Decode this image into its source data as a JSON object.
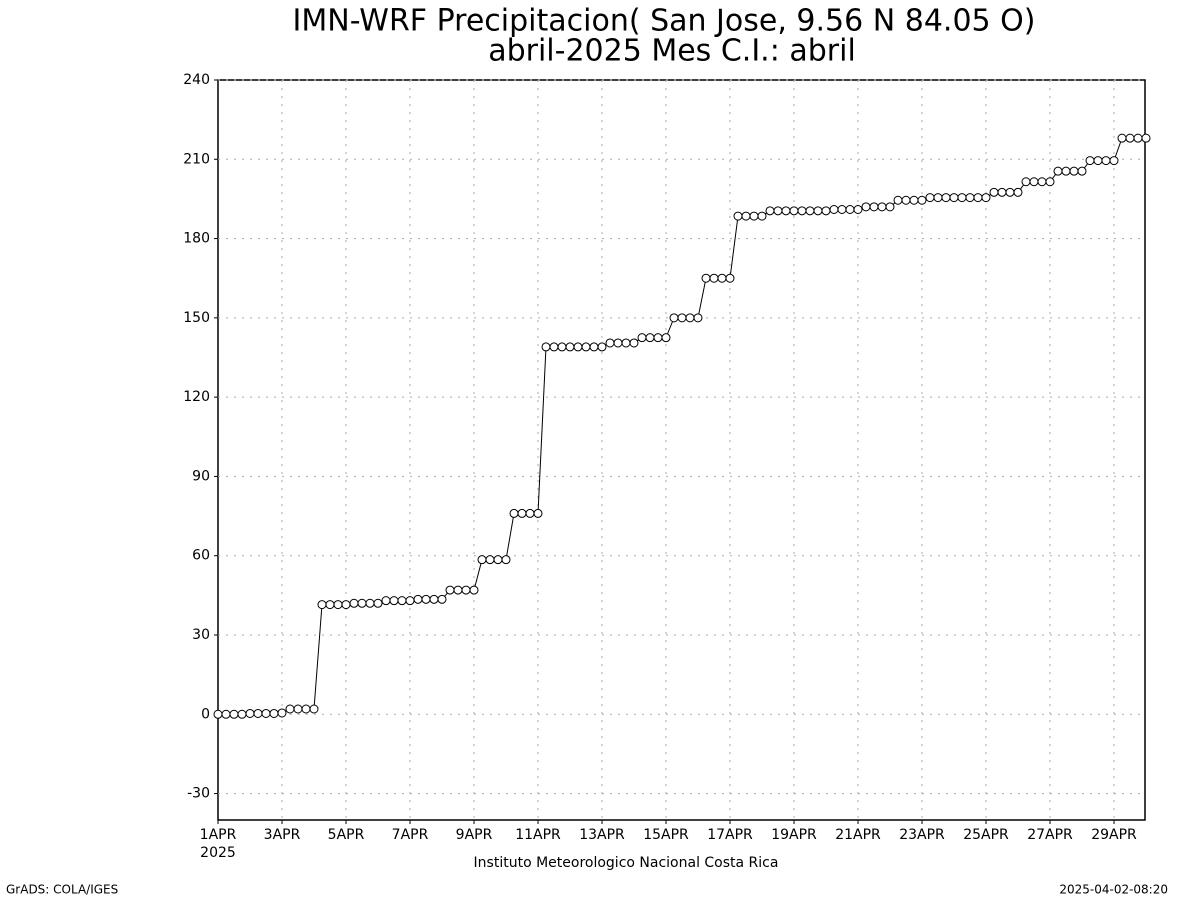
{
  "chart_data": {
    "type": "line",
    "title": "IMN-WRF  Precipitacion( San Jose, 9.56  N 84.05  O)",
    "subtitle": "abril-2025 Mes C.I.: abril",
    "x_year_label": "2025",
    "footer_center": "Instituto Meteorologico Nacional Costa Rica",
    "footer_left": "GrADS: COLA/IGES",
    "footer_right": "2025-04-02-08:20",
    "categories": [
      "1APR",
      null,
      null,
      null,
      null,
      null,
      null,
      null,
      "3APR",
      null,
      null,
      null,
      null,
      null,
      null,
      null,
      "5APR",
      null,
      null,
      null,
      null,
      null,
      null,
      null,
      "7APR",
      null,
      null,
      null,
      null,
      null,
      null,
      null,
      "9APR",
      null,
      null,
      null,
      null,
      null,
      null,
      null,
      "11APR",
      null,
      null,
      null,
      null,
      null,
      null,
      null,
      "13APR",
      null,
      null,
      null,
      null,
      null,
      null,
      null,
      "15APR",
      null,
      null,
      null,
      null,
      null,
      null,
      null,
      "17APR",
      null,
      null,
      null,
      null,
      null,
      null,
      null,
      "19APR",
      null,
      null,
      null,
      null,
      null,
      null,
      null,
      "21APR",
      null,
      null,
      null,
      null,
      null,
      null,
      null,
      "23APR",
      null,
      null,
      null,
      null,
      null,
      null,
      null,
      "25APR",
      null,
      null,
      null,
      null,
      null,
      null,
      null,
      "27APR",
      null,
      null,
      null,
      null,
      null,
      null,
      null,
      "29APR",
      null,
      null,
      null,
      null
    ],
    "values": [
      0,
      0,
      0,
      0,
      0.3,
      0.3,
      0.3,
      0.3,
      0.5,
      2,
      2,
      2,
      2,
      41.5,
      41.5,
      41.5,
      41.5,
      42,
      42,
      42,
      42,
      43,
      43,
      43,
      43,
      43.5,
      43.5,
      43.5,
      43.5,
      47,
      47,
      47,
      47,
      58.5,
      58.5,
      58.5,
      58.5,
      76,
      76,
      76,
      76,
      139,
      139,
      139,
      139,
      139,
      139,
      139,
      139,
      140.5,
      140.5,
      140.5,
      140.5,
      142.5,
      142.5,
      142.5,
      142.5,
      150,
      150,
      150,
      150,
      165,
      165,
      165,
      165,
      188.5,
      188.5,
      188.5,
      188.5,
      190.5,
      190.5,
      190.5,
      190.5,
      190.5,
      190.5,
      190.5,
      190.5,
      191,
      191,
      191,
      191,
      192,
      192,
      192,
      192,
      194.5,
      194.5,
      194.5,
      194.5,
      195.5,
      195.5,
      195.5,
      195.5,
      195.5,
      195.5,
      195.5,
      195.5,
      197.5,
      197.5,
      197.5,
      197.5,
      201.5,
      201.5,
      201.5,
      201.5,
      205.5,
      205.5,
      205.5,
      205.5,
      209.5,
      209.5,
      209.5,
      209.5,
      218,
      218,
      218,
      218
    ],
    "color": "#000000",
    "ylim": [
      -40,
      240
    ],
    "yticks": [
      -30,
      0,
      30,
      60,
      90,
      120,
      150,
      180,
      210,
      240
    ],
    "grid": true
  }
}
